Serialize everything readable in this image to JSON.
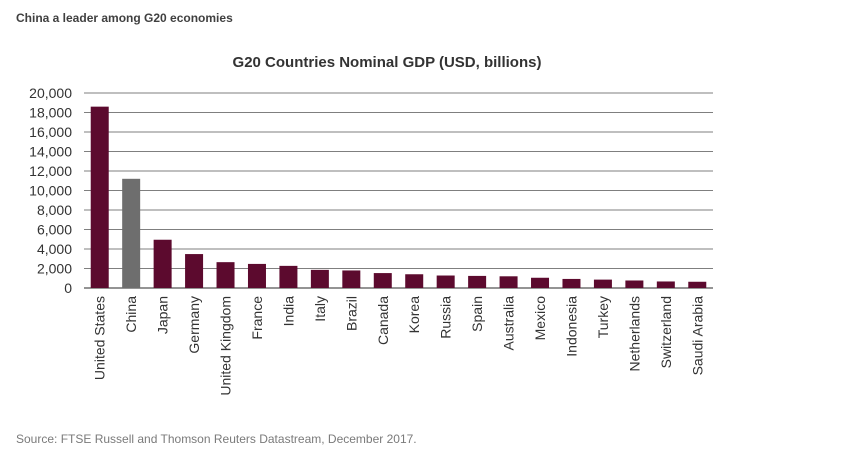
{
  "header": {
    "text": "China a leader among G20 economies"
  },
  "source": {
    "text": "Source: FTSE Russell and Thomson Reuters Datastream, December 2017."
  },
  "colors": {
    "primary_bar": "#5c0a2e",
    "highlight_bar": "#6e6e6e",
    "grid": "#555555",
    "text": "#333333"
  },
  "chart_data": {
    "type": "bar",
    "title": "G20 Countries Nominal GDP (USD, billions)",
    "xlabel": "",
    "ylabel": "",
    "ylim": [
      0,
      20000
    ],
    "yticks": [
      "0",
      "2,000",
      "4,000",
      "6,000",
      "8,000",
      "10,000",
      "12,000",
      "14,000",
      "16,000",
      "18,000",
      "20,000"
    ],
    "grid": true,
    "categories": [
      "United States",
      "China",
      "Japan",
      "Germany",
      "United Kingdom",
      "France",
      "India",
      "Italy",
      "Brazil",
      "Canada",
      "Korea",
      "Russia",
      "Spain",
      "Australia",
      "Mexico",
      "Indonesia",
      "Turkey",
      "Netherlands",
      "Switzerland",
      "Saudi Arabia"
    ],
    "values": [
      18600,
      11200,
      4950,
      3480,
      2650,
      2470,
      2270,
      1860,
      1800,
      1530,
      1410,
      1280,
      1240,
      1200,
      1050,
      930,
      860,
      770,
      670,
      640
    ],
    "highlight": "China"
  }
}
